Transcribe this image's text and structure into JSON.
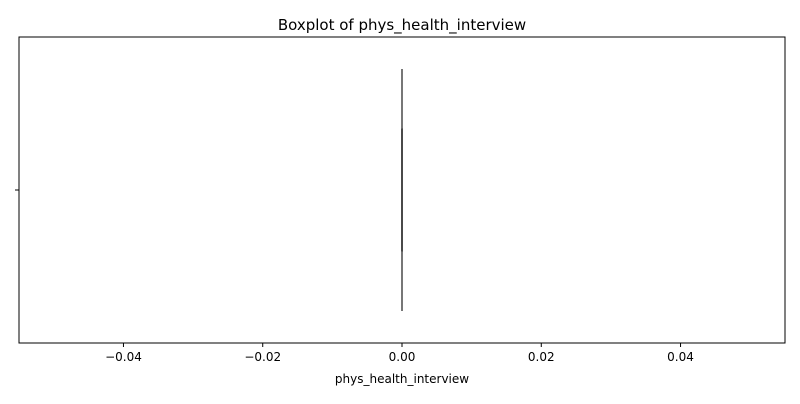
{
  "chart_data": {
    "type": "boxplot",
    "title": "Boxplot of phys_health_interview",
    "xlabel": "phys_health_interview",
    "ylabel": "",
    "orientation": "horizontal",
    "xlim": [
      -0.055,
      0.055
    ],
    "x_ticks": [
      -0.04,
      -0.02,
      0.0,
      0.02,
      0.04
    ],
    "x_tick_labels": [
      "−0.04",
      "−0.02",
      "0.00",
      "0.02",
      "0.04"
    ],
    "y_tick_labels": [
      ""
    ],
    "box": {
      "min": 0.0,
      "q1": 0.0,
      "median": 0.0,
      "q3": 0.0,
      "max": 0.0
    },
    "colors": {
      "box": "#4a4a4a",
      "frame": "#000000"
    }
  }
}
